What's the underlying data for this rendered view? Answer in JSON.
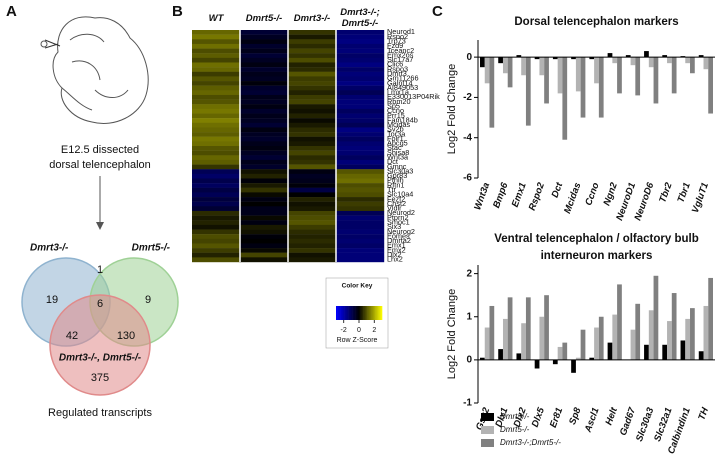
{
  "panels": [
    "A",
    "B",
    "C"
  ],
  "panel_a": {
    "caption": [
      "E12.5 dissected",
      "dorsal telencephalon"
    ],
    "venn": {
      "sets": [
        {
          "name": "Dmrt3-/-",
          "color": "#8fb3cf"
        },
        {
          "name": "Dmrt5-/-",
          "color": "#9fd196"
        },
        {
          "name": "Dmrt3-/-, Dmrt5-/-",
          "color": "#e08a8a"
        }
      ],
      "regions": [
        19,
        1,
        9,
        6,
        42,
        130,
        375
      ]
    },
    "footer": "Regulated transcripts"
  },
  "chart_data": [
    {
      "type": "heatmap",
      "columns": [
        "WT",
        "Dmrt5-/-",
        "Dmrt3-/-",
        "Dmrt3-/-; Dmrt5-/-"
      ],
      "rows": [
        "Neurod1",
        "Rspo2",
        "Trp73",
        "Fzd9",
        "Tceanc2",
        "Emx2os",
        "Slc17a7",
        "Clic6",
        "Rspo3",
        "Dmrt3",
        "Gm11266",
        "Galnt14",
        "AI849053",
        "Lmx1a",
        "E330013P04Rik",
        "Rbm20",
        "Sp5",
        "Ccno",
        "Prr15",
        "Fam184b",
        "Mcidas",
        "Sv2b",
        "Tor3a",
        "Folr1",
        "Abcg5",
        "Stac",
        "Shisa8",
        "Wnt3a",
        "Dct",
        "Gmnc",
        "Slc30a3",
        "Gpr83",
        "Pthlh",
        "Rftn1",
        "Ttr",
        "Slc10a4",
        "Fezf2",
        "Chst2",
        "Vldlr",
        "Neurod2",
        "Ptprn2",
        "Smoc1",
        "Six3",
        "Neurog2",
        "Eomes",
        "Dmrta2",
        "Emx1",
        "Emx2",
        "Dlx2",
        "Lhx2"
      ],
      "values": [
        [
          1.2,
          -0.6,
          0.6,
          -1.3
        ],
        [
          1.4,
          -0.4,
          0.3,
          -1.4
        ],
        [
          1.0,
          -0.2,
          0.7,
          -1.5
        ],
        [
          1.3,
          -0.5,
          0.5,
          -1.3
        ],
        [
          0.9,
          -0.3,
          0.8,
          -1.4
        ],
        [
          1.1,
          -0.6,
          0.6,
          -1.2
        ],
        [
          0.8,
          -0.4,
          0.9,
          -1.3
        ],
        [
          1.3,
          -0.2,
          0.4,
          -1.5
        ],
        [
          1.2,
          -0.5,
          0.5,
          -1.2
        ],
        [
          0.7,
          -0.3,
          1.0,
          -1.4
        ],
        [
          1.0,
          -0.4,
          0.7,
          -1.3
        ],
        [
          0.8,
          -0.1,
          0.8,
          -1.5
        ],
        [
          1.1,
          -0.5,
          0.6,
          -1.2
        ],
        [
          1.2,
          -0.6,
          0.4,
          -1.0
        ],
        [
          0.9,
          -0.3,
          0.7,
          -1.3
        ],
        [
          1.0,
          -0.4,
          0.8,
          -1.4
        ],
        [
          1.3,
          -0.2,
          0.3,
          -1.4
        ],
        [
          1.4,
          -0.5,
          0.2,
          -1.1
        ],
        [
          1.2,
          -0.3,
          0.4,
          -1.3
        ],
        [
          1.5,
          -0.4,
          0.1,
          -1.2
        ],
        [
          1.3,
          -0.6,
          0.3,
          -1.0
        ],
        [
          1.2,
          -0.2,
          0.5,
          -1.5
        ],
        [
          1.1,
          -0.4,
          0.6,
          -1.3
        ],
        [
          1.4,
          -0.5,
          0.2,
          -1.1
        ],
        [
          1.3,
          -0.3,
          0.3,
          -1.3
        ],
        [
          1.0,
          -0.2,
          0.6,
          -1.4
        ],
        [
          0.9,
          -0.4,
          0.8,
          -1.3
        ],
        [
          1.2,
          -0.6,
          0.5,
          -1.1
        ],
        [
          1.1,
          -0.3,
          0.6,
          -1.4
        ],
        [
          0.6,
          -0.5,
          1.0,
          -1.1
        ],
        [
          -1.0,
          0.2,
          -0.2,
          1.0
        ],
        [
          -1.2,
          0.4,
          -0.4,
          1.2
        ],
        [
          -0.9,
          -0.1,
          -0.3,
          1.3
        ],
        [
          -1.1,
          0.3,
          -0.1,
          0.9
        ],
        [
          -0.8,
          0.6,
          -0.8,
          1.0
        ],
        [
          -1.0,
          0.1,
          0.0,
          0.9
        ],
        [
          -0.7,
          -0.2,
          0.4,
          0.5
        ],
        [
          -0.9,
          0.0,
          0.2,
          0.7
        ],
        [
          -0.6,
          -0.3,
          0.3,
          0.6
        ],
        [
          0.5,
          -0.3,
          0.8,
          -1.0
        ],
        [
          0.3,
          0.1,
          0.9,
          -1.3
        ],
        [
          0.4,
          -0.2,
          1.0,
          -1.2
        ],
        [
          0.2,
          0.3,
          0.7,
          -1.2
        ],
        [
          0.6,
          0.2,
          0.5,
          -1.3
        ],
        [
          0.9,
          -0.1,
          0.4,
          -1.2
        ],
        [
          0.8,
          0.0,
          0.5,
          -1.3
        ],
        [
          1.0,
          -0.2,
          0.4,
          -1.2
        ],
        [
          0.7,
          0.1,
          0.6,
          -1.4
        ],
        [
          0.4,
          0.8,
          0.2,
          -1.4
        ],
        [
          0.9,
          0.2,
          0.3,
          -1.4
        ]
      ],
      "colorscale": [
        "#0000ff",
        "#000000",
        "#ffff00"
      ],
      "color_key": {
        "title": "Color Key",
        "label": "Row Z-Score",
        "range": [
          -3,
          3
        ],
        "ticks": [
          -2,
          0,
          2
        ]
      }
    },
    {
      "type": "bar",
      "title": "Dorsal telencephalon markers",
      "y_label": "Log2 Fold Change",
      "categories": [
        "Wnt3a",
        "Bmp6",
        "Emx1",
        "Rspo2",
        "Dct",
        "Mcidas",
        "Ccno",
        "Ngn2",
        "NeuroD1",
        "NeuroD6",
        "Tbr2",
        "Tbr1",
        "VgluT1"
      ],
      "series": [
        {
          "color": "#000000",
          "values": [
            -0.5,
            -0.3,
            0.1,
            -0.1,
            -0.1,
            -0.1,
            -0.1,
            0.2,
            0.1,
            0.3,
            0.1,
            0.05,
            0.1
          ]
        },
        {
          "color": "#b3b3b3",
          "values": [
            -1.3,
            -0.8,
            -0.9,
            -0.9,
            -1.8,
            -1.7,
            -1.3,
            -0.3,
            -0.4,
            -0.5,
            -0.3,
            -0.3,
            -0.6
          ]
        },
        {
          "color": "#808080",
          "values": [
            -3.5,
            -1.5,
            -3.4,
            -2.3,
            -4.1,
            -3.0,
            -3.0,
            -1.8,
            -1.9,
            -2.3,
            -1.8,
            -0.8,
            -2.8
          ]
        }
      ],
      "ylim": [
        -6,
        0.85
      ],
      "yticks": [
        -6,
        -4,
        -2,
        0
      ]
    },
    {
      "type": "bar",
      "title": [
        "Ventral telencephalon / olfactory bulb",
        "interneuron markers"
      ],
      "y_label": "Log2 Fold Change",
      "categories": [
        "Gsx2",
        "Dlx1",
        "Dlx2",
        "Dlx5",
        "Er81",
        "Sp8",
        "Ascl1",
        "Helt",
        "Gad67",
        "Slc30a3",
        "Slc32a1",
        "Calbindin1",
        "TH"
      ],
      "series": [
        {
          "name": "Dmrt3-/-",
          "color": "#000000",
          "values": [
            0.05,
            0.25,
            0.15,
            -0.2,
            -0.1,
            -0.3,
            0.05,
            0.4,
            0.0,
            0.35,
            0.35,
            0.45,
            0.2
          ]
        },
        {
          "name": "Dmrt5-/-",
          "color": "#b3b3b3",
          "values": [
            0.75,
            0.95,
            0.85,
            1.0,
            0.3,
            0.05,
            0.75,
            1.05,
            0.7,
            1.15,
            0.9,
            0.95,
            1.25
          ]
        },
        {
          "name": "Dmrt3-/-;Dmrt5-/-",
          "color": "#808080",
          "values": [
            1.25,
            1.45,
            1.45,
            1.5,
            0.4,
            0.7,
            1.0,
            1.75,
            1.3,
            1.95,
            1.55,
            1.2,
            1.9
          ]
        }
      ],
      "ylim": [
        -1,
        2.2
      ],
      "yticks": [
        -1,
        0,
        1,
        2
      ]
    }
  ]
}
